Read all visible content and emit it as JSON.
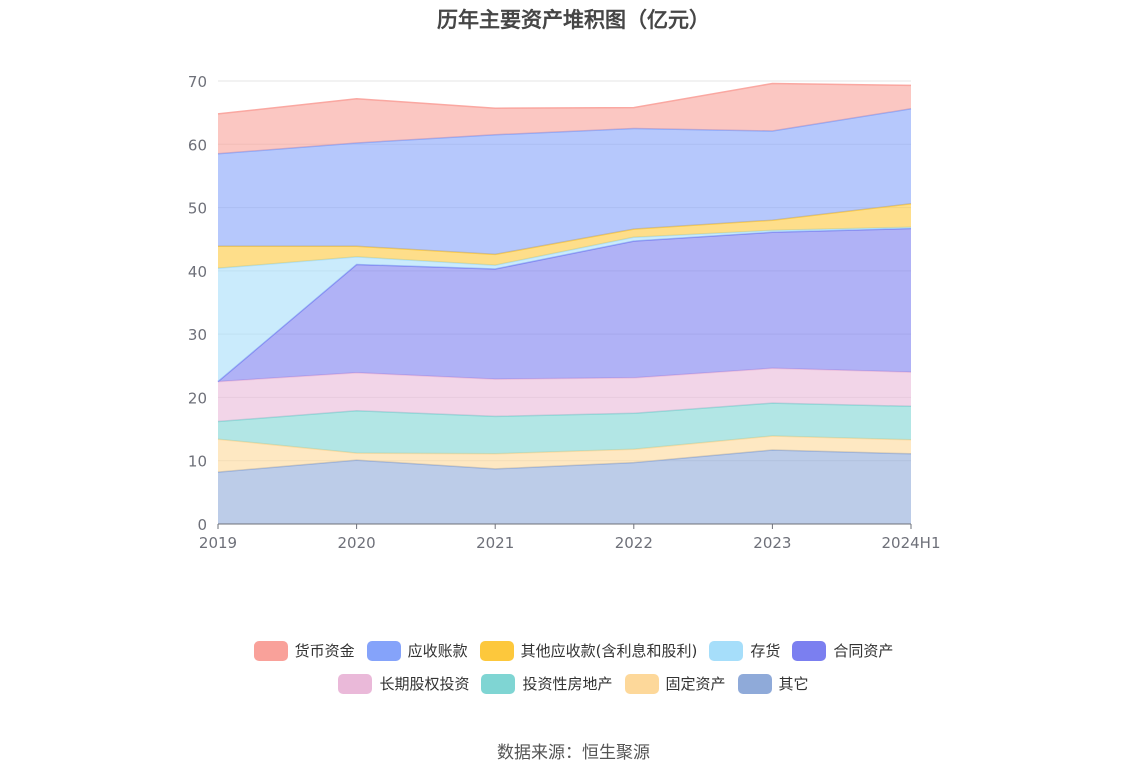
{
  "title": "历年主要资产堆积图（亿元）",
  "source": "数据来源：恒生聚源",
  "chart_data": {
    "type": "area",
    "stacked": true,
    "categories": [
      "2019",
      "2020",
      "2021",
      "2022",
      "2023",
      "2024H1"
    ],
    "ylim": [
      0,
      70
    ],
    "yticks": [
      0,
      10,
      20,
      30,
      40,
      50,
      60,
      70
    ],
    "grid": true,
    "legend_position": "bottom",
    "series": [
      {
        "name": "其它",
        "color": "#8faad9",
        "values": [
          8.2,
          10.1,
          8.7,
          9.7,
          11.7,
          11.1
        ]
      },
      {
        "name": "固定资产",
        "color": "#fdd89a",
        "values": [
          5.2,
          1.1,
          2.4,
          2.1,
          2.2,
          2.2
        ]
      },
      {
        "name": "投资性房地产",
        "color": "#7fd5d3",
        "values": [
          2.8,
          6.7,
          5.9,
          5.7,
          5.2,
          5.3
        ]
      },
      {
        "name": "长期股权投资",
        "color": "#eab9d9",
        "values": [
          6.3,
          6.0,
          5.9,
          5.6,
          5.5,
          5.4
        ]
      },
      {
        "name": "合同资产",
        "color": "#7b7ff0",
        "values": [
          0.0,
          17.1,
          17.4,
          21.6,
          21.5,
          22.7
        ]
      },
      {
        "name": "存货",
        "color": "#a6defa",
        "values": [
          17.9,
          1.2,
          0.6,
          0.6,
          0.3,
          0.2
        ]
      },
      {
        "name": "其他应收款(含利息和股利)",
        "color": "#fdc83c",
        "values": [
          3.5,
          1.7,
          1.7,
          1.3,
          1.6,
          3.7
        ]
      },
      {
        "name": "应收账款",
        "color": "#85a3fa",
        "values": [
          14.6,
          16.3,
          18.9,
          15.9,
          14.1,
          15.0
        ]
      },
      {
        "name": "货币资金",
        "color": "#f9a19a",
        "values": [
          6.3,
          7.0,
          4.2,
          3.3,
          7.5,
          3.7
        ]
      }
    ]
  },
  "legend_rows": [
    [
      "货币资金",
      "应收账款",
      "其他应收款(含利息和股利)",
      "存货",
      "合同资产"
    ],
    [
      "长期股权投资",
      "投资性房地产",
      "固定资产",
      "其它"
    ]
  ]
}
